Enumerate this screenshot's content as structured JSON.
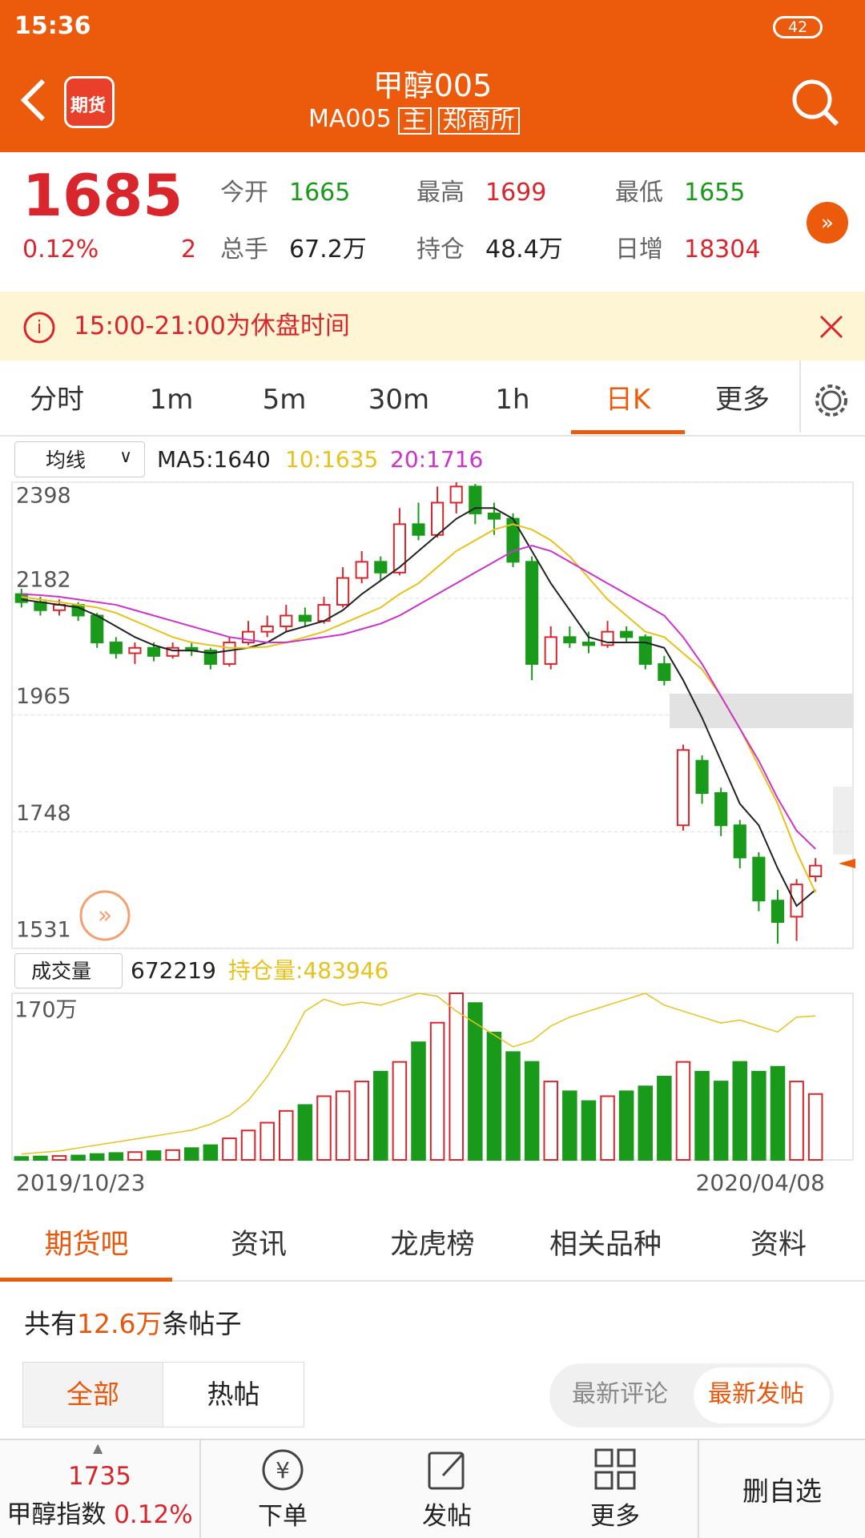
{
  "status_bar": {
    "time": "15:36",
    "battery": "42"
  },
  "header": {
    "logo": "期货",
    "title": "甲醇005",
    "code": "MA005",
    "tags": [
      "主",
      "郑商所"
    ]
  },
  "quote": {
    "price": "1685",
    "change_pct": "0.12%",
    "change": "2",
    "fields": [
      {
        "label": "今开",
        "value": "1665"
      },
      {
        "label": "最高",
        "value": "1699"
      },
      {
        "label": "最低",
        "value": "1655"
      },
      {
        "label": "总手",
        "value": "67.2万"
      },
      {
        "label": "持仓",
        "value": "48.4万"
      },
      {
        "label": "日增",
        "value": "18304"
      }
    ]
  },
  "notice": "15:00-21:00为休盘时间",
  "tabs": [
    "分时",
    "1m",
    "5m",
    "30m",
    "1h",
    "日K",
    "更多"
  ],
  "ma_legend": {
    "selector": "均线",
    "ma5": "MA5:1640",
    "ma10": "10:1635",
    "ma20": "20:1716"
  },
  "volume_legend": {
    "value": "672219",
    "open_interest": "持仓量:483946"
  },
  "chart_data": [
    {
      "type": "candlestick",
      "up_color": "#d9262c",
      "down_color": "#1a9a1a",
      "grid": true,
      "ylim": [
        1531,
        2398
      ],
      "yticks": [
        1531,
        1748,
        1965,
        2182,
        2398
      ],
      "open": [
        2190,
        2175,
        2160,
        2170,
        2150,
        2100,
        2080,
        2090,
        2075,
        2090,
        2085,
        2060,
        2100,
        2120,
        2130,
        2150,
        2140,
        2170,
        2220,
        2250,
        2230,
        2320,
        2300,
        2360,
        2390,
        2340,
        2330,
        2250,
        2060,
        2110,
        2100,
        2095,
        2120,
        2110,
        2060,
        1760,
        1880,
        1820,
        1760,
        1700,
        1620,
        1590,
        1665
      ],
      "close": [
        2175,
        2160,
        2170,
        2150,
        2100,
        2080,
        2090,
        2075,
        2090,
        2085,
        2060,
        2100,
        2120,
        2130,
        2150,
        2140,
        2170,
        2220,
        2250,
        2230,
        2320,
        2300,
        2360,
        2390,
        2340,
        2330,
        2250,
        2060,
        2110,
        2100,
        2095,
        2120,
        2110,
        2060,
        2030,
        1900,
        1820,
        1760,
        1700,
        1620,
        1580,
        1650,
        1685
      ],
      "high": [
        2200,
        2185,
        2180,
        2175,
        2155,
        2110,
        2100,
        2100,
        2100,
        2100,
        2090,
        2110,
        2140,
        2150,
        2170,
        2165,
        2185,
        2240,
        2270,
        2260,
        2350,
        2360,
        2390,
        2398,
        2395,
        2360,
        2340,
        2260,
        2130,
        2130,
        2120,
        2140,
        2130,
        2115,
        2075,
        1910,
        1890,
        1830,
        1770,
        1710,
        1640,
        1660,
        1699
      ],
      "low": [
        2165,
        2150,
        2150,
        2140,
        2090,
        2070,
        2060,
        2065,
        2070,
        2075,
        2050,
        2055,
        2095,
        2110,
        2120,
        2130,
        2135,
        2165,
        2210,
        2215,
        2225,
        2290,
        2295,
        2340,
        2320,
        2300,
        2240,
        2030,
        2050,
        2090,
        2080,
        2090,
        2100,
        2050,
        2020,
        1750,
        1800,
        1740,
        1680,
        1600,
        1540,
        1545,
        1655
      ],
      "series": [
        {
          "color": "#222222",
          "values": [
            2180,
            2175,
            2170,
            2165,
            2150,
            2130,
            2110,
            2095,
            2085,
            2085,
            2080,
            2085,
            2090,
            2100,
            2120,
            2130,
            2140,
            2160,
            2190,
            2215,
            2240,
            2270,
            2300,
            2330,
            2350,
            2350,
            2330,
            2270,
            2210,
            2160,
            2110,
            2100,
            2100,
            2100,
            2090,
            2030,
            1960,
            1880,
            1800,
            1760,
            1680,
            1610,
            1640
          ]
        },
        {
          "color": "#e8c21a",
          "values": [
            2185,
            2180,
            2175,
            2170,
            2165,
            2155,
            2140,
            2125,
            2110,
            2100,
            2095,
            2090,
            2090,
            2092,
            2100,
            2110,
            2120,
            2135,
            2150,
            2165,
            2190,
            2210,
            2240,
            2270,
            2290,
            2310,
            2320,
            2310,
            2290,
            2260,
            2220,
            2180,
            2150,
            2120,
            2110,
            2080,
            2050,
            2000,
            1940,
            1870,
            1800,
            1710,
            1635
          ]
        },
        {
          "color": "#cc33cc",
          "values": [
            2190,
            2188,
            2185,
            2180,
            2175,
            2170,
            2160,
            2150,
            2140,
            2130,
            2120,
            2110,
            2105,
            2100,
            2100,
            2105,
            2110,
            2115,
            2125,
            2135,
            2150,
            2170,
            2190,
            2210,
            2230,
            2250,
            2270,
            2280,
            2270,
            2250,
            2230,
            2210,
            2190,
            2170,
            2150,
            2110,
            2060,
            2000,
            1940,
            1880,
            1810,
            1750,
            1716
          ]
        }
      ]
    },
    {
      "type": "bar",
      "x": [
        "2019/10/23",
        null,
        null,
        null,
        null,
        null,
        null,
        null,
        null,
        null,
        null,
        null,
        null,
        null,
        null,
        null,
        null,
        null,
        null,
        null,
        null,
        null,
        null,
        null,
        null,
        null,
        null,
        null,
        null,
        null,
        null,
        null,
        null,
        null,
        null,
        null,
        null,
        null,
        null,
        null,
        null,
        null,
        "2020/04/08"
      ],
      "ylim": [
        0,
        1700000
      ],
      "yticks": [
        {
          "value": 1700000,
          "label": "170万"
        }
      ],
      "y2lim": [
        0,
        560000
      ],
      "series": [
        {
          "name": "成交量",
          "values": [
            30000,
            35000,
            40000,
            45000,
            60000,
            70000,
            80000,
            90000,
            100000,
            120000,
            150000,
            220000,
            300000,
            380000,
            500000,
            560000,
            650000,
            700000,
            800000,
            900000,
            1000000,
            1200000,
            1400000,
            1700000,
            1600000,
            1300000,
            1100000,
            1000000,
            800000,
            700000,
            600000,
            650000,
            700000,
            750000,
            850000,
            1000000,
            900000,
            800000,
            1000000,
            900000,
            950000,
            800000,
            672219
          ]
        },
        {
          "axis": "y2",
          "color": "#e8c21a",
          "values": [
            20000,
            25000,
            30000,
            40000,
            50000,
            60000,
            70000,
            80000,
            90000,
            100000,
            120000,
            150000,
            200000,
            280000,
            380000,
            500000,
            540000,
            520000,
            530000,
            520000,
            540000,
            560000,
            550000,
            500000,
            460000,
            420000,
            380000,
            400000,
            450000,
            480000,
            500000,
            520000,
            540000,
            560000,
            520000,
            500000,
            480000,
            460000,
            470000,
            450000,
            430000,
            480000,
            483946
          ]
        }
      ]
    }
  ],
  "section_tabs": [
    "期货吧",
    "资讯",
    "龙虎榜",
    "相关品种",
    "资料"
  ],
  "posts": {
    "prefix": "共有",
    "count": "12.6万",
    "suffix": "条帖子"
  },
  "filters": [
    "全部",
    "热帖"
  ],
  "sort": [
    "最新评论",
    "最新发帖"
  ],
  "bottom_bar": {
    "index_value": "1735",
    "index_name": "甲醇指数",
    "index_pct": "0.12%",
    "items": [
      "下单",
      "发帖",
      "更多"
    ],
    "remove": "删自选"
  }
}
